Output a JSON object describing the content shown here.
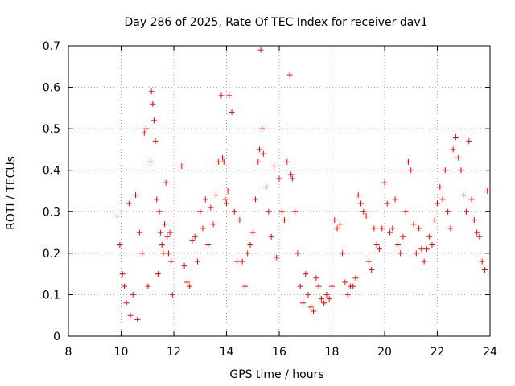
{
  "chart_data": {
    "type": "scatter",
    "title": "Day 286 of 2025, Rate Of TEC Index for receiver dav1",
    "xlabel": "GPS time / hours",
    "ylabel": "ROTI / TECUs",
    "xlim": [
      8,
      24
    ],
    "ylim": [
      0,
      0.7
    ],
    "xticks": [
      8,
      10,
      12,
      14,
      16,
      18,
      20,
      22,
      24
    ],
    "xtick_labels": [
      "8",
      "10",
      "12",
      "14",
      "16",
      "18",
      "20",
      "22",
      "24"
    ],
    "yticks": [
      0,
      0.1,
      0.2,
      0.3,
      0.4,
      0.5,
      0.6,
      0.7
    ],
    "ytick_labels": [
      "0",
      "0.1",
      "0.2",
      "0.3",
      "0.4",
      "0.5",
      "0.6",
      "0.7"
    ],
    "grid": true,
    "marker": "plus",
    "series_color": "#ff0000",
    "series": [
      {
        "name": "ROTI",
        "x": [
          9.85,
          9.95,
          10.05,
          10.12,
          10.2,
          10.3,
          10.35,
          10.45,
          10.55,
          10.62,
          10.7,
          10.8,
          10.88,
          10.95,
          11.02,
          11.1,
          11.15,
          11.2,
          11.25,
          11.3,
          11.35,
          11.4,
          11.45,
          11.5,
          11.55,
          11.6,
          11.65,
          11.7,
          11.75,
          11.8,
          11.85,
          11.9,
          11.95,
          12.3,
          12.4,
          12.5,
          12.6,
          12.7,
          12.8,
          12.9,
          13.0,
          13.1,
          13.2,
          13.3,
          13.4,
          13.5,
          13.6,
          13.7,
          13.8,
          13.85,
          13.9,
          13.95,
          14.0,
          14.05,
          14.1,
          14.2,
          14.3,
          14.4,
          14.5,
          14.6,
          14.7,
          14.8,
          14.9,
          15.0,
          15.1,
          15.2,
          15.25,
          15.3,
          15.35,
          15.4,
          15.5,
          15.6,
          15.7,
          15.8,
          15.9,
          16.0,
          16.1,
          16.2,
          16.3,
          16.4,
          16.45,
          16.5,
          16.6,
          16.7,
          16.8,
          16.9,
          17.0,
          17.1,
          17.2,
          17.3,
          17.4,
          17.5,
          17.6,
          17.7,
          17.8,
          17.9,
          18.0,
          18.1,
          18.2,
          18.3,
          18.4,
          18.5,
          18.6,
          18.7,
          18.8,
          18.9,
          19.0,
          19.1,
          19.2,
          19.3,
          19.4,
          19.5,
          19.6,
          19.7,
          19.8,
          19.9,
          20.0,
          20.1,
          20.2,
          20.3,
          20.4,
          20.5,
          20.6,
          20.7,
          20.8,
          20.9,
          21.0,
          21.1,
          21.2,
          21.3,
          21.4,
          21.5,
          21.6,
          21.7,
          21.8,
          21.9,
          22.0,
          22.1,
          22.2,
          22.3,
          22.4,
          22.5,
          22.6,
          22.7,
          22.8,
          22.9,
          23.0,
          23.1,
          23.2,
          23.3,
          23.4,
          23.5,
          23.6,
          23.7,
          23.8,
          23.9,
          24.0
        ],
        "y": [
          0.29,
          0.22,
          0.15,
          0.12,
          0.08,
          0.32,
          0.05,
          0.1,
          0.34,
          0.04,
          0.25,
          0.2,
          0.49,
          0.5,
          0.12,
          0.42,
          0.59,
          0.56,
          0.52,
          0.47,
          0.33,
          0.15,
          0.3,
          0.25,
          0.22,
          0.2,
          0.27,
          0.37,
          0.24,
          0.2,
          0.25,
          0.18,
          0.1,
          0.41,
          0.17,
          0.13,
          0.12,
          0.23,
          0.24,
          0.18,
          0.3,
          0.26,
          0.33,
          0.22,
          0.31,
          0.27,
          0.34,
          0.42,
          0.58,
          0.43,
          0.42,
          0.33,
          0.32,
          0.35,
          0.58,
          0.54,
          0.3,
          0.18,
          0.28,
          0.18,
          0.12,
          0.2,
          0.22,
          0.25,
          0.33,
          0.42,
          0.45,
          0.69,
          0.5,
          0.44,
          0.36,
          0.3,
          0.24,
          0.41,
          0.19,
          0.38,
          0.3,
          0.28,
          0.42,
          0.63,
          0.39,
          0.38,
          0.3,
          0.2,
          0.12,
          0.08,
          0.15,
          0.1,
          0.07,
          0.06,
          0.14,
          0.12,
          0.09,
          0.08,
          0.1,
          0.09,
          0.12,
          0.28,
          0.26,
          0.27,
          0.2,
          0.13,
          0.1,
          0.12,
          0.12,
          0.14,
          0.34,
          0.32,
          0.3,
          0.29,
          0.18,
          0.16,
          0.26,
          0.22,
          0.21,
          0.26,
          0.37,
          0.32,
          0.25,
          0.26,
          0.33,
          0.22,
          0.2,
          0.24,
          0.3,
          0.42,
          0.4,
          0.27,
          0.2,
          0.26,
          0.21,
          0.18,
          0.21,
          0.24,
          0.22,
          0.28,
          0.32,
          0.36,
          0.33,
          0.4,
          0.3,
          0.26,
          0.45,
          0.48,
          0.43,
          0.4,
          0.34,
          0.3,
          0.47,
          0.33,
          0.28,
          0.25,
          0.24,
          0.18,
          0.16,
          0.35,
          0.35
        ]
      }
    ]
  }
}
